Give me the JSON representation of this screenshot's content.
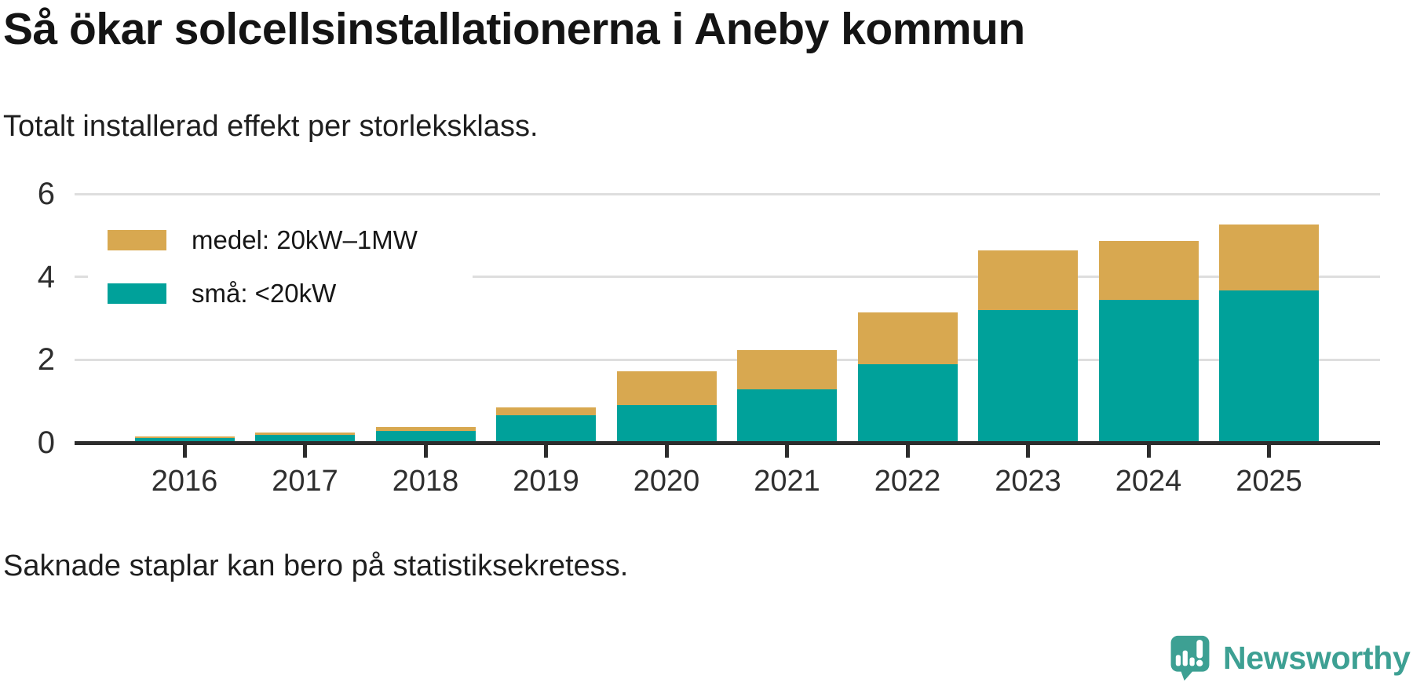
{
  "header": {
    "title": "Så ökar solcellsinstallationerna i Aneby kommun",
    "subtitle": "Totalt installerad effekt per storleksklass."
  },
  "footer": {
    "note": "Saknade staplar kan bero på statistiksekretess."
  },
  "branding": {
    "name": "Newsworthy",
    "logo_icon": "newsworthy-speech-bubble-bar-chart-icon",
    "color": "#3da093"
  },
  "chart_data": {
    "type": "bar",
    "stacked": true,
    "title": "Så ökar solcellsinstallationerna i Aneby kommun",
    "subtitle": "Totalt installerad effekt per storleksklass.",
    "note": "Saknade staplar kan bero på statistiksekretess.",
    "categories": [
      "2016",
      "2017",
      "2018",
      "2019",
      "2020",
      "2021",
      "2022",
      "2023",
      "2024",
      "2025"
    ],
    "series": [
      {
        "id": "sma",
        "name": "små: <20kW",
        "color": "#00a19a",
        "values": [
          0.11,
          0.19,
          0.29,
          0.66,
          0.91,
          1.28,
          1.89,
          3.19,
          3.45,
          3.67
        ]
      },
      {
        "id": "medel",
        "name": "medel: 20kW–1MW",
        "color": "#d8a850",
        "values": [
          0.05,
          0.05,
          0.09,
          0.19,
          0.81,
          0.95,
          1.26,
          1.44,
          1.42,
          1.6
        ]
      }
    ],
    "legend_order": [
      1,
      0
    ],
    "legend_position": "top-left-inside",
    "xlabel": "",
    "ylabel": "",
    "ylim": [
      0,
      6
    ],
    "yticks": [
      0,
      2,
      4,
      6
    ],
    "grid": "horizontal",
    "axis_color": "#2d2d2d",
    "gridline_color": "#dedede"
  }
}
